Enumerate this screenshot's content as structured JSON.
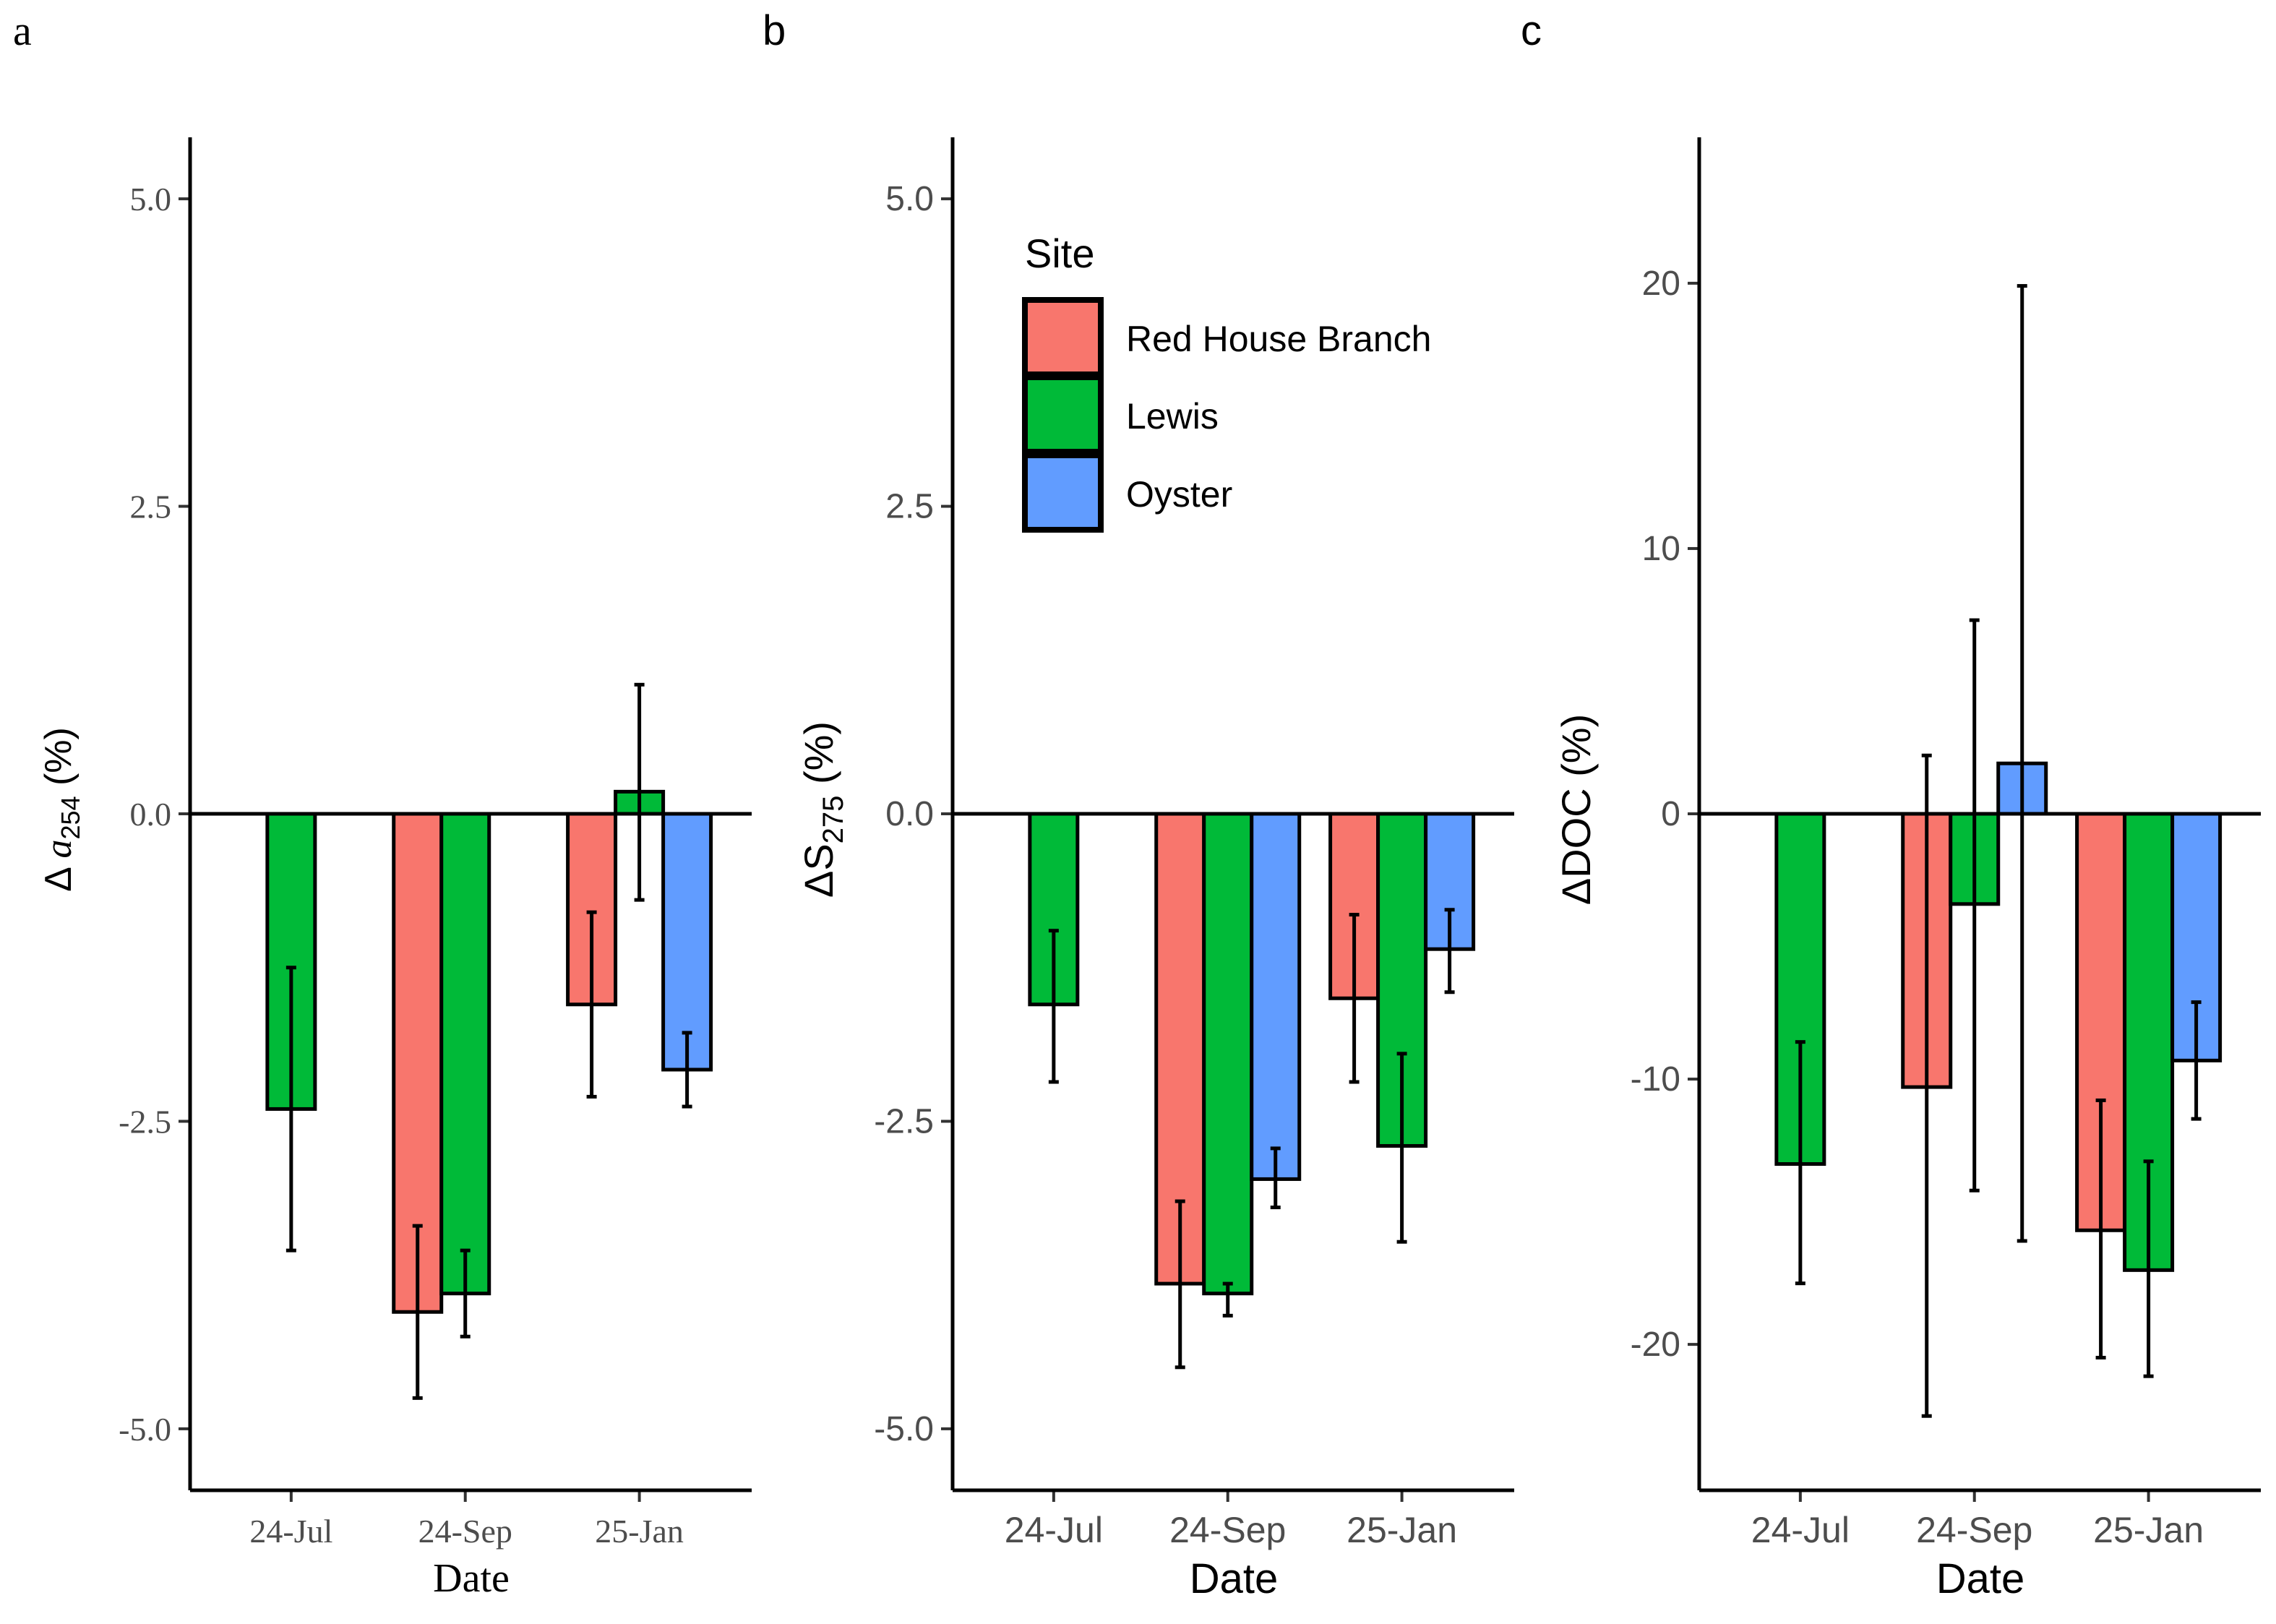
{
  "figure": {
    "sites": [
      {
        "name": "Red House Branch",
        "color": "#F8766D"
      },
      {
        "name": "Lewis",
        "color": "#00BA38"
      },
      {
        "name": "Oyster",
        "color": "#619CFF"
      }
    ],
    "legend": {
      "title": "Site",
      "placement": "top-left of panel b"
    }
  },
  "chart_data": [
    {
      "type": "bar",
      "panel_label": "a",
      "title": "",
      "xlabel": "Date",
      "ylabel_prefix": "Δ ",
      "ylabel_symbol": "a",
      "ylabel_sub": "254",
      "ylabel_suffix": " (%)",
      "categories": [
        "24-Jul",
        "24-Sep",
        "25-Jan"
      ],
      "ylim": [
        -5.5,
        5.5
      ],
      "yticks": [
        -5.0,
        -2.5,
        0.0,
        2.5,
        5.0
      ],
      "ytick_labels": [
        "-5.0",
        "-2.5",
        "0.0",
        "2.5",
        "5.0"
      ],
      "grid": false,
      "series": [
        {
          "name": "Red House Branch",
          "values": [
            null,
            -4.05,
            -1.55
          ],
          "error_low": [
            null,
            -4.75,
            -2.3
          ],
          "error_high": [
            null,
            -3.35,
            -0.8
          ]
        },
        {
          "name": "Lewis",
          "values": [
            -2.4,
            -3.9,
            0.18
          ],
          "error_low": [
            -3.55,
            -4.25,
            -0.7
          ],
          "error_high": [
            -1.25,
            -3.55,
            1.05
          ]
        },
        {
          "name": "Oyster",
          "values": [
            null,
            null,
            -2.08
          ],
          "error_low": [
            null,
            null,
            -2.38
          ],
          "error_high": [
            null,
            null,
            -1.78
          ]
        }
      ]
    },
    {
      "type": "bar",
      "panel_label": "b",
      "title": "",
      "xlabel": "Date",
      "ylabel_prefix": "ΔS",
      "ylabel_symbol": "",
      "ylabel_sub": "275",
      "ylabel_suffix": " (%)",
      "categories": [
        "24-Jul",
        "24-Sep",
        "25-Jan"
      ],
      "ylim": [
        -5.5,
        5.5
      ],
      "yticks": [
        -5.0,
        -2.5,
        0.0,
        2.5,
        5.0
      ],
      "ytick_labels": [
        "-5.0",
        "-2.5",
        "0.0",
        "2.5",
        "5.0"
      ],
      "grid": false,
      "series": [
        {
          "name": "Red House Branch",
          "values": [
            null,
            -3.82,
            -1.5
          ],
          "error_low": [
            null,
            -4.5,
            -2.18
          ],
          "error_high": [
            null,
            -3.15,
            -0.82
          ]
        },
        {
          "name": "Lewis",
          "values": [
            -1.55,
            -3.9,
            -2.7
          ],
          "error_low": [
            -2.18,
            -4.08,
            -3.48
          ],
          "error_high": [
            -0.95,
            -3.82,
            -1.95
          ]
        },
        {
          "name": "Oyster",
          "values": [
            null,
            -2.97,
            -1.1
          ],
          "error_low": [
            null,
            -3.2,
            -1.45
          ],
          "error_high": [
            null,
            -2.72,
            -0.78
          ]
        }
      ]
    },
    {
      "type": "bar",
      "panel_label": "c",
      "title": "",
      "xlabel": "Date",
      "ylabel_prefix": "ΔDOC",
      "ylabel_symbol": "",
      "ylabel_sub": "",
      "ylabel_suffix": " (%)",
      "categories": [
        "24-Jul",
        "24-Sep",
        "25-Jan"
      ],
      "ylim": [
        -25.5,
        25.5
      ],
      "yticks": [
        -20,
        -10,
        0,
        10,
        20
      ],
      "ytick_labels": [
        "-20",
        "-10",
        "0",
        "10",
        "20"
      ],
      "grid": false,
      "series": [
        {
          "name": "Red House Branch",
          "values": [
            null,
            -10.3,
            -15.7
          ],
          "error_low": [
            null,
            -22.7,
            -20.5
          ],
          "error_high": [
            null,
            2.2,
            -10.8
          ]
        },
        {
          "name": "Lewis",
          "values": [
            -13.2,
            -3.4,
            -17.2
          ],
          "error_low": [
            -17.7,
            -14.2,
            -21.2
          ],
          "error_high": [
            -8.6,
            7.3,
            -13.1
          ]
        },
        {
          "name": "Oyster",
          "values": [
            null,
            1.9,
            -9.3
          ],
          "error_low": [
            null,
            -16.1,
            -11.5
          ],
          "error_high": [
            null,
            19.9,
            -7.1
          ]
        }
      ]
    }
  ]
}
